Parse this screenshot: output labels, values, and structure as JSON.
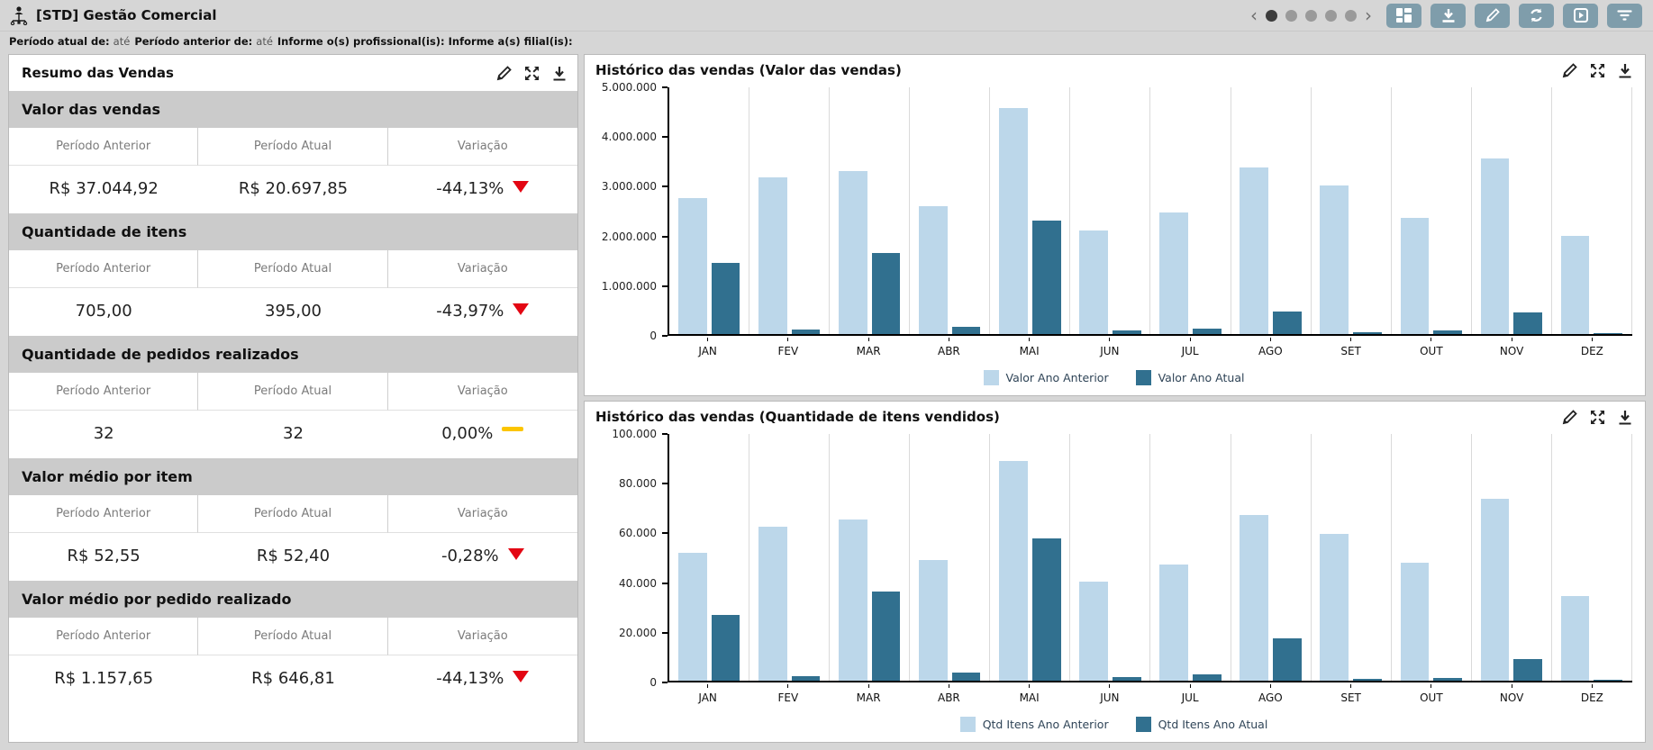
{
  "topbar": {
    "title": "[STD] Gestão Comercial",
    "pager_dots": [
      true,
      false,
      false,
      false,
      false
    ],
    "prev_label": "‹",
    "next_label": "›",
    "buttons": [
      {
        "name": "layout"
      },
      {
        "name": "download"
      },
      {
        "name": "edit"
      },
      {
        "name": "refresh"
      },
      {
        "name": "presentation"
      },
      {
        "name": "filter"
      }
    ],
    "button_color": "#7f9dab"
  },
  "filter_bar": {
    "segments": [
      {
        "label": "Período atual de:",
        "suffix": "até"
      },
      {
        "label": "Período anterior de:",
        "suffix": "até"
      },
      {
        "label": "Informe o(s) profissional(is):",
        "suffix": ""
      },
      {
        "label": "Informe a(s) filial(is):",
        "suffix": ""
      }
    ]
  },
  "summary": {
    "title": "Resumo das Vendas",
    "columns": [
      "Período Anterior",
      "Período Atual",
      "Variação"
    ],
    "trend_colors": {
      "down": "#e30613",
      "flat": "#fcc500"
    },
    "sections": [
      {
        "title": "Valor das vendas",
        "previous": "R$ 37.044,92",
        "current": "R$ 20.697,85",
        "variation": "-44,13%",
        "trend": "down"
      },
      {
        "title": "Quantidade de itens",
        "previous": "705,00",
        "current": "395,00",
        "variation": "-43,97%",
        "trend": "down"
      },
      {
        "title": "Quantidade de pedidos realizados",
        "previous": "32",
        "current": "32",
        "variation": "0,00%",
        "trend": "flat"
      },
      {
        "title": "Valor médio por item",
        "previous": "R$ 52,55",
        "current": "R$ 52,40",
        "variation": "-0,28%",
        "trend": "down"
      },
      {
        "title": "Valor médio por pedido realizado",
        "previous": "R$ 1.157,65",
        "current": "R$ 646,81",
        "variation": "-44,13%",
        "trend": "down"
      }
    ]
  },
  "chart_data": [
    {
      "type": "bar",
      "title": "Histórico das vendas (Valor das vendas)",
      "categories": [
        "JAN",
        "FEV",
        "MAR",
        "ABR",
        "MAI",
        "JUN",
        "JUL",
        "AGO",
        "SET",
        "OUT",
        "NOV",
        "DEZ"
      ],
      "series": [
        {
          "name": "Valor Ano Anterior",
          "color": "#bcd7ea",
          "values": [
            2750000,
            3180000,
            3300000,
            2600000,
            4580000,
            2100000,
            2470000,
            3380000,
            3020000,
            2360000,
            3560000,
            1990000
          ]
        },
        {
          "name": "Valor Ano Atual",
          "color": "#31708f",
          "values": [
            1440000,
            90000,
            1640000,
            150000,
            2300000,
            70000,
            110000,
            465000,
            40000,
            70000,
            440000,
            15000
          ]
        }
      ],
      "ylim": [
        0,
        5000000
      ],
      "yticks": [
        {
          "value": 0,
          "label": "0"
        },
        {
          "value": 1000000,
          "label": "1.000.000"
        },
        {
          "value": 2000000,
          "label": "2.000.000"
        },
        {
          "value": 3000000,
          "label": "3.000.000"
        },
        {
          "value": 4000000,
          "label": "4.000.000"
        },
        {
          "value": 5000000,
          "label": "5.000.000"
        }
      ],
      "legend_position": "bottom",
      "grid": "vertical-separators"
    },
    {
      "type": "bar",
      "title": "Histórico das vendas (Quantidade de itens vendidos)",
      "categories": [
        "JAN",
        "FEV",
        "MAR",
        "ABR",
        "MAI",
        "JUN",
        "JUL",
        "AGO",
        "SET",
        "OUT",
        "NOV",
        "DEZ"
      ],
      "series": [
        {
          "name": "Qtd Itens Ano Anterior",
          "color": "#bcd7ea",
          "values": [
            52000,
            62500,
            65500,
            49000,
            89000,
            40000,
            47000,
            67200,
            59500,
            47700,
            73700,
            34400
          ]
        },
        {
          "name": "Qtd Itens Ano Atual",
          "color": "#31708f",
          "values": [
            26500,
            1800,
            36000,
            3200,
            57500,
            1500,
            2400,
            17200,
            800,
            1200,
            8900,
            300
          ]
        }
      ],
      "ylim": [
        0,
        100000
      ],
      "yticks": [
        {
          "value": 0,
          "label": "0"
        },
        {
          "value": 20000,
          "label": "20.000"
        },
        {
          "value": 40000,
          "label": "40.000"
        },
        {
          "value": 60000,
          "label": "60.000"
        },
        {
          "value": 80000,
          "label": "80.000"
        },
        {
          "value": 100000,
          "label": "100.000"
        }
      ],
      "legend_position": "bottom",
      "grid": "vertical-separators"
    }
  ]
}
